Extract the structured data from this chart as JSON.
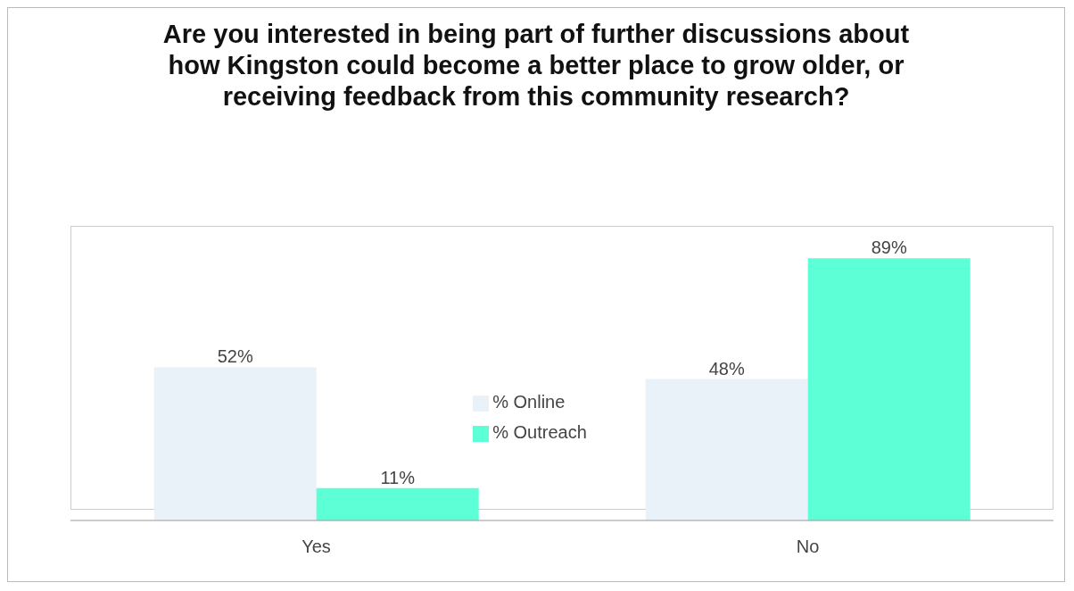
{
  "chart_data": {
    "type": "bar",
    "title": "Are you interested in being part of further discussions about how Kingston could become a better place to grow older, or receiving feedback from this community research?",
    "categories": [
      "Yes",
      "No"
    ],
    "series": [
      {
        "name": "% Online",
        "color": "#e9f1f9",
        "values": [
          52,
          48
        ],
        "value_labels": [
          "52%",
          "48%"
        ]
      },
      {
        "name": "% Outreach",
        "color": "#5cffd6",
        "values": [
          11,
          89
        ],
        "value_labels": [
          "11%",
          "89%"
        ]
      }
    ],
    "legend": "center",
    "grid": false
  }
}
